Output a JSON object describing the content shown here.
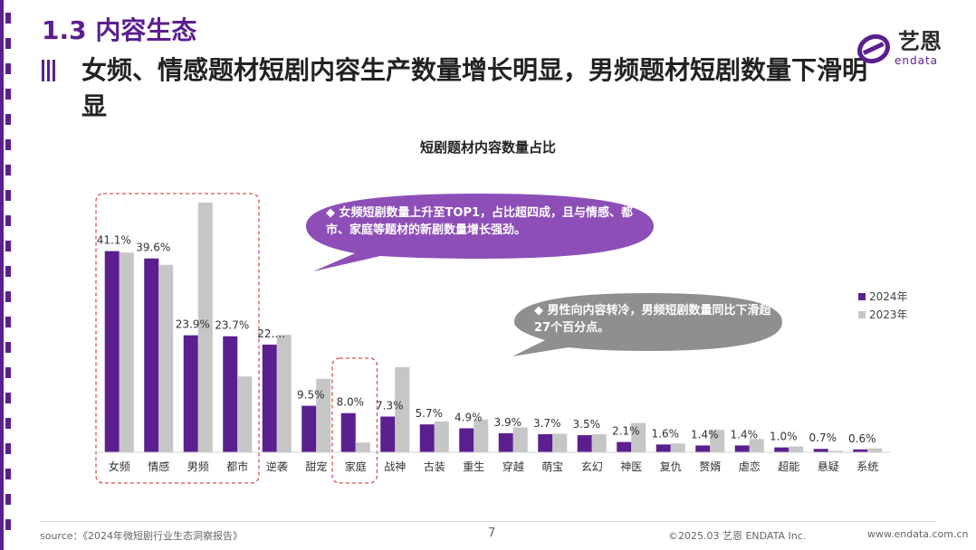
{
  "colors": {
    "accent": "#5b1f8f",
    "series_2024": "#5b1f8f",
    "series_2023": "#c6c6c6",
    "callout_purple": "#8d4eb8",
    "callout_gray": "#8f8f8f",
    "highlight_border": "#d9534f"
  },
  "header": {
    "section_title": "1.3 内容生态",
    "headline": "女频、情感题材短剧内容生产数量增长明显，男频题材短剧数量下滑明显"
  },
  "logo": {
    "cn": "艺恩",
    "en": "endata"
  },
  "callouts": [
    {
      "text": "女频短剧数量上升至TOP1，占比超四成，且与情感、都市、家庭等题材的新剧数量增长强劲。"
    },
    {
      "text": "男性向内容转冷，男频短剧数量同比下滑超27个百分点。"
    }
  ],
  "chart_data": {
    "type": "bar",
    "title": "短剧题材内容数量占比",
    "categories": [
      "女频",
      "情感",
      "男频",
      "都市",
      "逆袭",
      "甜宠",
      "家庭",
      "战神",
      "古装",
      "重生",
      "穿越",
      "萌宝",
      "玄幻",
      "神医",
      "复仇",
      "赘婿",
      "虐恋",
      "超能",
      "悬疑",
      "系统"
    ],
    "series": [
      {
        "name": "2024年",
        "values": [
          41.1,
          39.6,
          23.9,
          23.7,
          22.0,
          9.5,
          8.0,
          7.3,
          5.7,
          4.9,
          3.9,
          3.7,
          3.5,
          2.1,
          1.6,
          1.4,
          1.4,
          1.0,
          0.7,
          0.6
        ]
      },
      {
        "name": "2023年",
        "values": [
          40.8,
          38.3,
          51.0,
          15.5,
          24.0,
          15.0,
          2.0,
          17.4,
          6.3,
          6.7,
          5.1,
          3.8,
          3.7,
          6.0,
          1.8,
          4.6,
          2.7,
          1.2,
          0.3,
          0.8
        ]
      }
    ],
    "data_labels": [
      "41.1%",
      "39.6%",
      "23.9%",
      "23.7%",
      "22.…",
      "9.5%",
      "8.0%",
      "7.3%",
      "5.7%",
      "4.9%",
      "3.9%",
      "3.7%",
      "3.5%",
      "2.1%",
      "1.6%",
      "1.4%",
      "1.4%",
      "1.0%",
      "0.7%",
      "0.6%"
    ],
    "ylim": [
      0,
      51
    ],
    "legend_position": "right",
    "grid": false,
    "highlight_groups": [
      [
        0,
        3
      ],
      [
        6,
        6
      ]
    ]
  },
  "footer": {
    "source": "source：《2024年微短剧行业生态洞察报告》",
    "page": "7",
    "copyright": "©2025.03  艺恩  ENDATA Inc.",
    "website": "www.endata.com.cn"
  }
}
